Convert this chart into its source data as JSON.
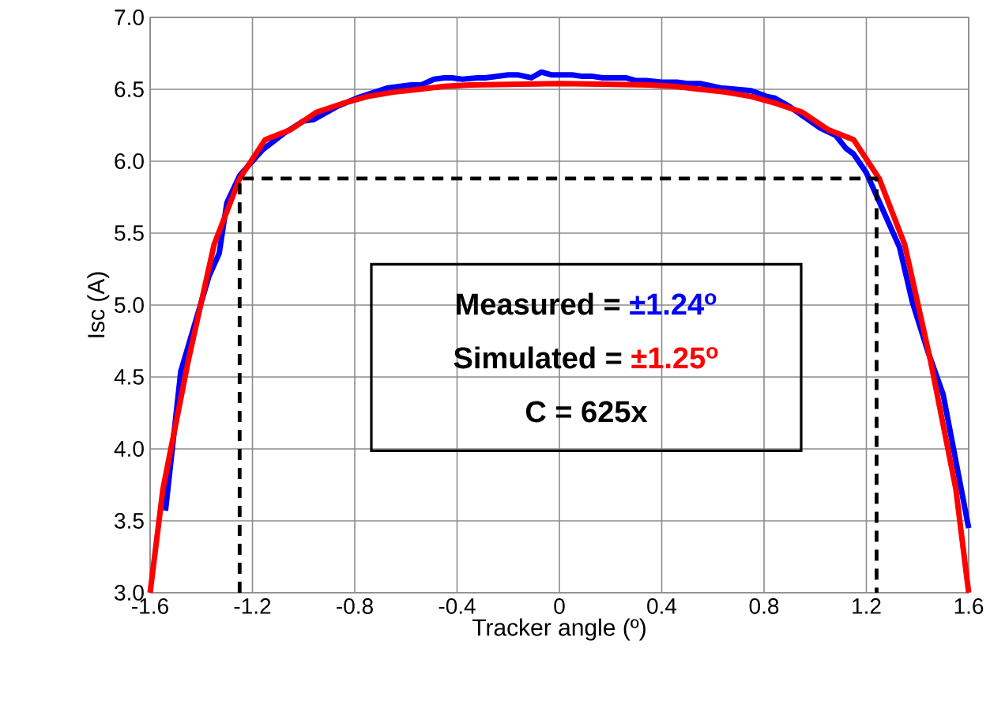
{
  "chart_data": {
    "type": "line",
    "xlabel": "Tracker angle (º)",
    "ylabel": "Isc (A)",
    "xlim": [
      -1.6,
      1.6
    ],
    "ylim": [
      3.0,
      7.0
    ],
    "xticks": [
      -1.6,
      -1.2,
      -0.8,
      -0.4,
      0,
      0.4,
      0.8,
      1.2,
      1.6
    ],
    "yticks": [
      {
        "value": 3.0,
        "label": "3.0"
      },
      {
        "value": 3.5,
        "label": "3.5"
      },
      {
        "value": 4.0,
        "label": "4.0"
      },
      {
        "value": 4.5,
        "label": "4.5"
      },
      {
        "value": 5.0,
        "label": "5.0"
      },
      {
        "value": 5.5,
        "label": "5.5"
      },
      {
        "value": 6.0,
        "label": "6.0"
      },
      {
        "value": 6.5,
        "label": "6.5"
      },
      {
        "value": 7.0,
        "label": "7.0"
      }
    ],
    "grid": true,
    "marker": "none",
    "series": [
      {
        "color": "#0000ff",
        "x": [
          -1.54,
          -1.48,
          -1.37,
          -1.33,
          -1.3,
          -1.25,
          -1.16,
          -1.08,
          -1.0,
          -0.96,
          -0.87,
          -0.79,
          -0.67,
          -0.58,
          -0.54,
          -0.49,
          -0.45,
          -0.42,
          -0.38,
          -0.32,
          -0.29,
          -0.2,
          -0.16,
          -0.11,
          -0.07,
          -0.03,
          0.05,
          0.09,
          0.13,
          0.17,
          0.26,
          0.3,
          0.34,
          0.4,
          0.46,
          0.5,
          0.55,
          0.63,
          0.75,
          0.81,
          0.84,
          0.9,
          1.02,
          1.08,
          1.12,
          1.15,
          1.2,
          1.26,
          1.33,
          1.38,
          1.44,
          1.5,
          1.6
        ],
        "values": [
          3.57,
          4.54,
          5.2,
          5.36,
          5.71,
          5.9,
          6.08,
          6.19,
          6.28,
          6.29,
          6.38,
          6.44,
          6.51,
          6.53,
          6.53,
          6.57,
          6.58,
          6.58,
          6.57,
          6.58,
          6.58,
          6.6,
          6.6,
          6.58,
          6.62,
          6.6,
          6.6,
          6.59,
          6.59,
          6.58,
          6.58,
          6.56,
          6.56,
          6.55,
          6.55,
          6.54,
          6.54,
          6.51,
          6.49,
          6.45,
          6.44,
          6.38,
          6.23,
          6.18,
          6.09,
          6.05,
          5.92,
          5.68,
          5.4,
          5.02,
          4.68,
          4.38,
          3.45
        ]
      },
      {
        "color": "#ff0000",
        "x": [
          -1.6,
          -1.55,
          -1.45,
          -1.35,
          -1.25,
          -1.15,
          -1.05,
          -0.95,
          -0.85,
          -0.75,
          -0.65,
          -0.55,
          -0.45,
          -0.35,
          0,
          0.35,
          0.45,
          0.55,
          0.65,
          0.75,
          0.85,
          0.95,
          1.05,
          1.15,
          1.25,
          1.35,
          1.45,
          1.55,
          1.6
        ],
        "values": [
          3.0,
          3.72,
          4.62,
          5.42,
          5.88,
          6.15,
          6.22,
          6.34,
          6.4,
          6.45,
          6.48,
          6.5,
          6.52,
          6.53,
          6.54,
          6.53,
          6.52,
          6.5,
          6.48,
          6.45,
          6.4,
          6.34,
          6.22,
          6.15,
          5.88,
          5.42,
          4.62,
          3.72,
          3.0
        ]
      },
      {
        "color": "#000000",
        "line_style": "dashed",
        "x": [
          -1.25,
          -1.25,
          1.24,
          1.24
        ],
        "values": [
          3.0,
          5.88,
          5.88,
          3.0
        ]
      }
    ],
    "annotations": [
      "Measured =",
      "±1.24$^{o}$",
      "Simulated =",
      "±1.25$^{o}$",
      "C = 625x"
    ]
  }
}
